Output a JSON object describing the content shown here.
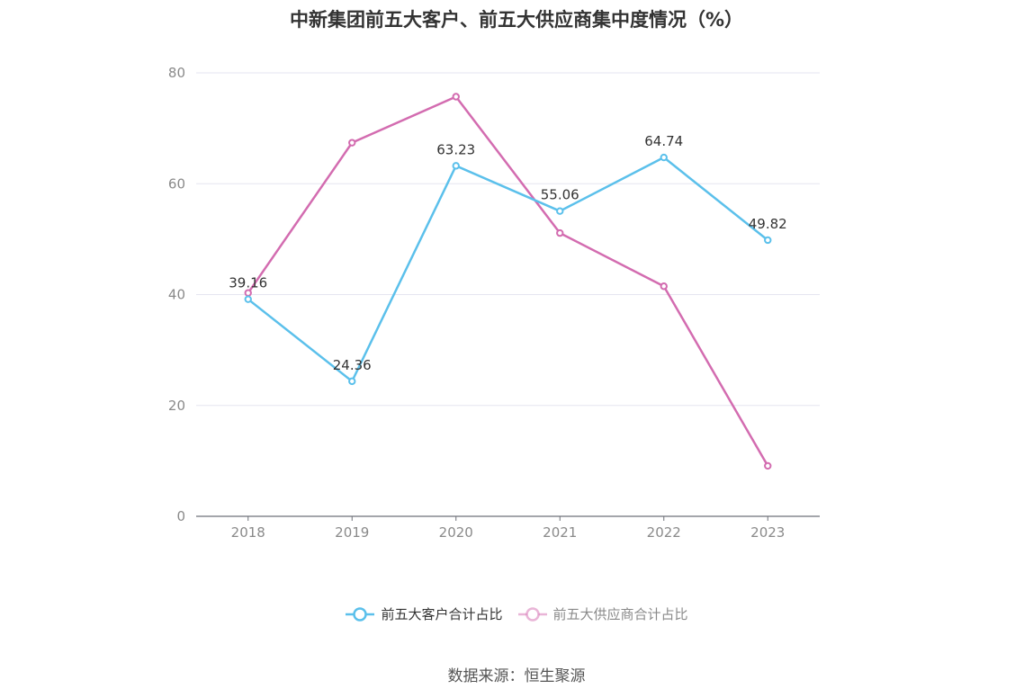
{
  "title": "中新集团前五大客户、前五大供应商集中度情况（%）",
  "source_note": "数据来源：恒生聚源",
  "chart_data": {
    "type": "line",
    "title": "中新集团前五大客户、前五大供应商集中度情况（%）",
    "x": [
      "2018",
      "2019",
      "2020",
      "2021",
      "2022",
      "2023"
    ],
    "ylim": [
      0,
      80
    ],
    "yticks": [
      0,
      20,
      40,
      60,
      80
    ],
    "grid": true,
    "legend_position": "bottom-center",
    "series": [
      {
        "name": "前五大客户合计占比",
        "color": "#5bc0eb",
        "values": [
          39.16,
          24.36,
          63.23,
          55.06,
          64.74,
          49.82
        ],
        "data_labels": [
          "39.16",
          "24.36",
          "63.23",
          "55.06",
          "64.74",
          "49.82"
        ]
      },
      {
        "name": "前五大供应商合计占比",
        "color": "#d36cb0",
        "values": [
          40.3,
          67.4,
          75.7,
          51.1,
          41.5,
          9.1
        ],
        "data_labels": []
      }
    ]
  }
}
